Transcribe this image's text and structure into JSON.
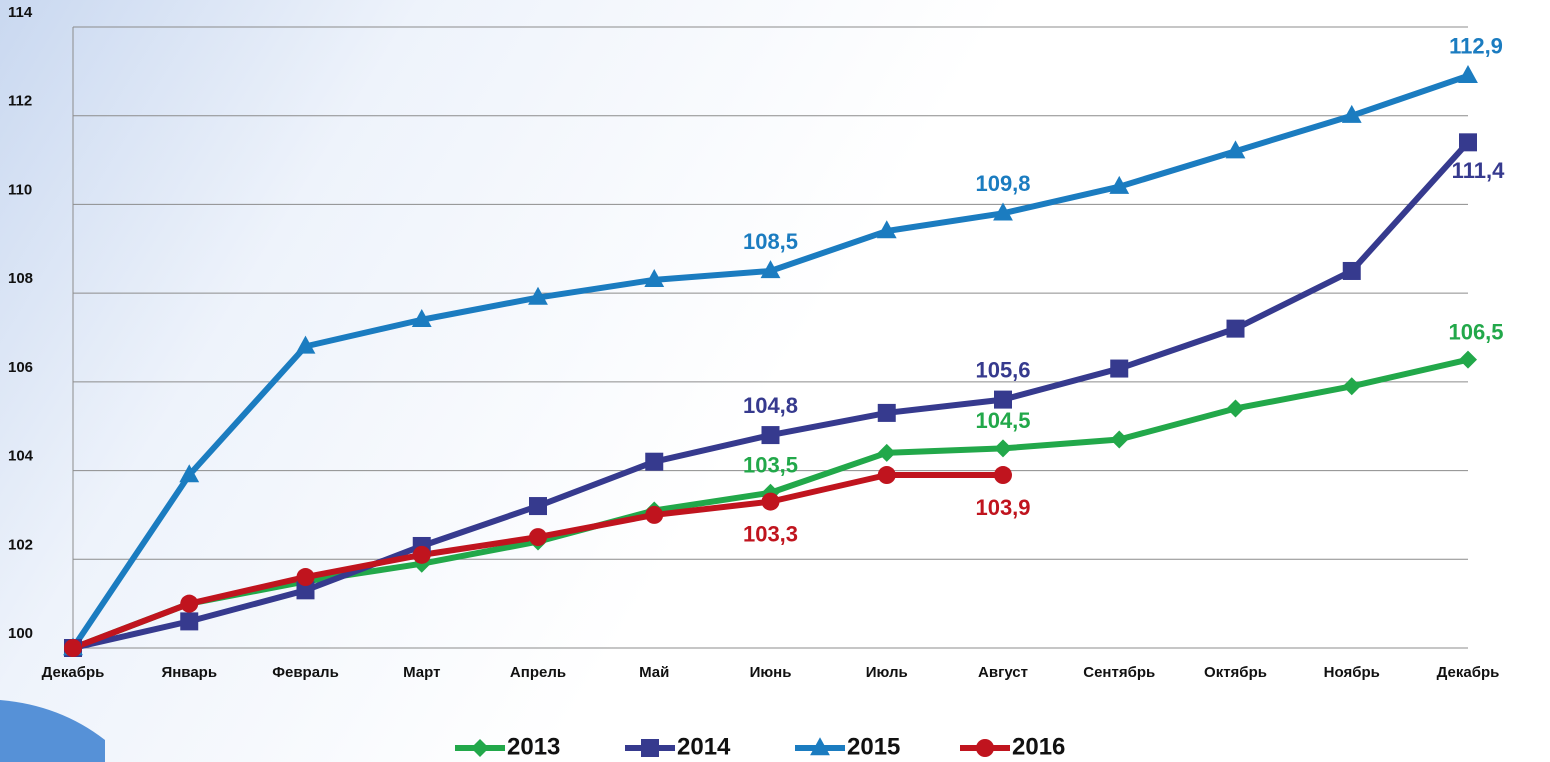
{
  "chart_data": {
    "type": "line",
    "categories": [
      "Декабрь",
      "Январь",
      "Февраль",
      "Март",
      "Апрель",
      "Май",
      "Июнь",
      "Июль",
      "Август",
      "Сентябрь",
      "Октябрь",
      "Ноябрь",
      "Декабрь"
    ],
    "ylim": [
      100,
      114
    ],
    "yticks": [
      100,
      102,
      104,
      106,
      108,
      110,
      112,
      114
    ],
    "grid": true,
    "legend": "bottom",
    "series": [
      {
        "name": "2013",
        "color": "#22a84a",
        "marker": "diamond",
        "values": [
          100,
          101.0,
          101.5,
          101.9,
          102.4,
          103.1,
          103.5,
          104.4,
          104.5,
          104.7,
          105.4,
          105.9,
          106.5
        ],
        "value_labels": [
          null,
          null,
          null,
          null,
          null,
          null,
          "103,5",
          null,
          "104,5",
          null,
          null,
          null,
          "106,5"
        ]
      },
      {
        "name": "2014",
        "color": "#363a8e",
        "marker": "square",
        "values": [
          100,
          100.6,
          101.3,
          102.3,
          103.2,
          104.2,
          104.8,
          105.3,
          105.6,
          106.3,
          107.2,
          108.5,
          111.4
        ],
        "value_labels": [
          null,
          null,
          null,
          null,
          null,
          null,
          "104,8",
          null,
          "105,6",
          null,
          null,
          null,
          "111,4"
        ]
      },
      {
        "name": "2015",
        "color": "#1b7cc0",
        "marker": "triangle",
        "values": [
          100,
          103.9,
          106.8,
          107.4,
          107.9,
          108.3,
          108.5,
          109.4,
          109.8,
          110.4,
          111.2,
          112.0,
          112.9
        ],
        "value_labels": [
          null,
          null,
          null,
          null,
          null,
          null,
          "108,5",
          null,
          "109,8",
          null,
          null,
          null,
          "112,9"
        ]
      },
      {
        "name": "2016",
        "color": "#c0141e",
        "marker": "circle",
        "values": [
          100,
          101.0,
          101.6,
          102.1,
          102.5,
          103.0,
          103.3,
          103.9,
          103.9,
          null,
          null,
          null,
          null
        ],
        "value_labels": [
          null,
          null,
          null,
          null,
          null,
          null,
          "103,3",
          null,
          "103,9",
          null,
          null,
          null,
          null
        ]
      }
    ]
  }
}
